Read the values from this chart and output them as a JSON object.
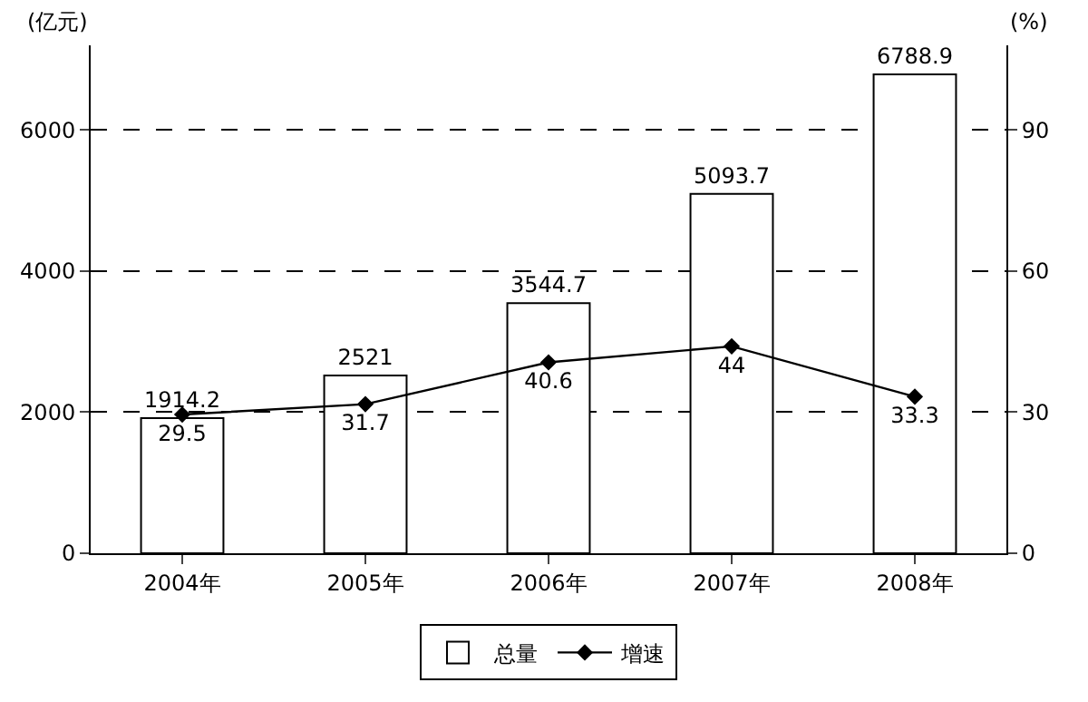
{
  "chart_data": {
    "type": "bar",
    "ylabel": "(亿元)",
    "y2label": "(%)",
    "categories": [
      "2004年",
      "2005年",
      "2006年",
      "2007年",
      "2008年"
    ],
    "series": [
      {
        "name": "总量",
        "color": "#ffffff",
        "values": [
          1914.2,
          2521,
          3544.7,
          5093.7,
          6788.9
        ]
      },
      {
        "name": "增速",
        "type": "line",
        "axis": "y2",
        "color": "#000000",
        "marker": "diamond",
        "values": [
          29.5,
          31.7,
          40.6,
          44,
          33.3
        ]
      }
    ],
    "ylim": [
      0,
      7200
    ],
    "yticks": [
      0,
      2000,
      4000,
      6000
    ],
    "y2lim": [
      0,
      108
    ],
    "y2ticks": [
      0,
      30,
      60,
      90
    ],
    "grid": "y",
    "legend": "bottom",
    "data_labels": true
  }
}
